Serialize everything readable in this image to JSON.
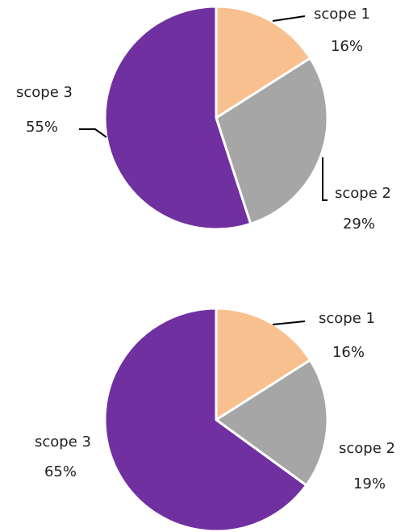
{
  "chart_data": [
    {
      "type": "pie",
      "categories": [
        "scope 1",
        "scope 2",
        "scope 3"
      ],
      "values": [
        16,
        29,
        55
      ],
      "value_labels": [
        "16%",
        "29%",
        "55%"
      ],
      "colors": [
        "#f9c08f",
        "#a6a6a6",
        "#7030a0"
      ]
    },
    {
      "type": "pie",
      "categories": [
        "scope 1",
        "scope 2",
        "scope 3"
      ],
      "values": [
        16,
        19,
        65
      ],
      "value_labels": [
        "16%",
        "19%",
        "65%"
      ],
      "colors": [
        "#f9c08f",
        "#a6a6a6",
        "#7030a0"
      ]
    }
  ]
}
